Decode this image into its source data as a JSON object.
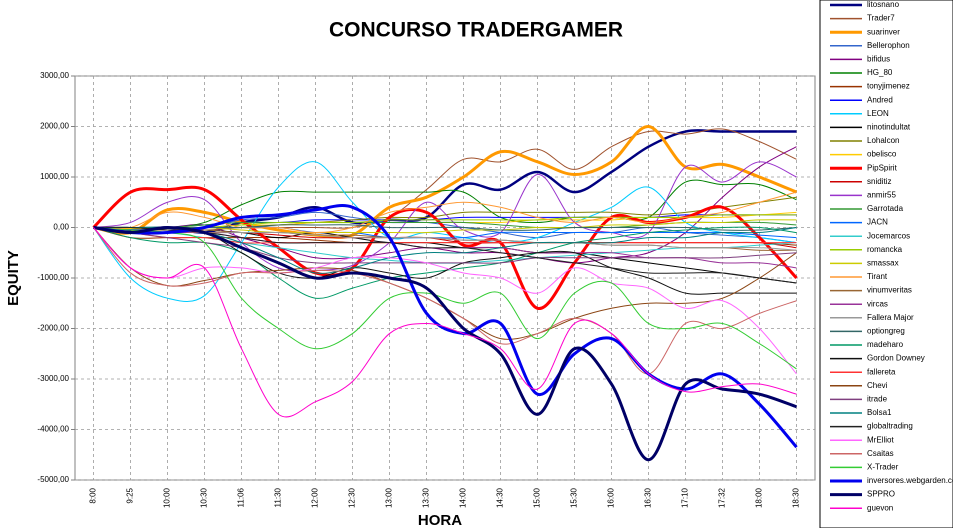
{
  "chart_data": {
    "type": "line",
    "title": "CONCURSO TRADERGAMER",
    "x_label": "HORA",
    "y_label": "EQUITY",
    "categories": [
      "8:00",
      "9:25",
      "10:00",
      "10:30",
      "11:06",
      "11:30",
      "12:00",
      "12:30",
      "13:00",
      "13:30",
      "14:00",
      "14:30",
      "15:00",
      "15:30",
      "16:00",
      "16:30",
      "17:10",
      "17:32",
      "18:00",
      "18:30"
    ],
    "ylim": [
      -5000,
      3000
    ],
    "yticks": [
      {
        "value": -5000,
        "label": "-5000,00"
      },
      {
        "value": -4000,
        "label": "-4000,00"
      },
      {
        "value": -3000,
        "label": "-3000,00"
      },
      {
        "value": -2000,
        "label": "-2000,00"
      },
      {
        "value": -1000,
        "label": "-1000,00"
      },
      {
        "value": 0,
        "label": "0,00"
      },
      {
        "value": 1000,
        "label": "1000,00"
      },
      {
        "value": 2000,
        "label": "2000,00"
      },
      {
        "value": 3000,
        "label": "3000,00"
      }
    ],
    "grid": true,
    "series": [
      {
        "name": "litosnano",
        "color": "#000080",
        "values": [
          0,
          -50,
          0,
          -100,
          100,
          200,
          400,
          100,
          150,
          200,
          850,
          750,
          1100,
          700,
          1100,
          1600,
          1900,
          1900,
          1900,
          1900
        ]
      },
      {
        "name": "Trader7",
        "color": "#a0522d",
        "values": [
          0,
          -100,
          0,
          -50,
          0,
          0,
          0,
          0,
          200,
          750,
          1350,
          1300,
          1550,
          1150,
          1600,
          1900,
          1850,
          1950,
          1700,
          1350
        ]
      },
      {
        "name": "suarinver",
        "color": "#ff9900",
        "values": [
          0,
          -100,
          350,
          300,
          100,
          -50,
          -150,
          -150,
          400,
          600,
          1000,
          1500,
          1300,
          1050,
          1300,
          2000,
          1200,
          1250,
          1000,
          700
        ]
      },
      {
        "name": "Bellerophon",
        "color": "#3366cc",
        "values": [
          0,
          -30,
          -50,
          0,
          150,
          200,
          300,
          200,
          100,
          100,
          0,
          -100,
          -200,
          -100,
          -100,
          0,
          -100,
          -150,
          -200,
          -300
        ]
      },
      {
        "name": "bifidus",
        "color": "#800080",
        "values": [
          0,
          0,
          0,
          50,
          -200,
          -400,
          -600,
          -600,
          -500,
          -400,
          -500,
          -500,
          -600,
          -700,
          -600,
          -500,
          -100,
          600,
          1200,
          1600
        ]
      },
      {
        "name": "HG_80",
        "color": "#008000",
        "values": [
          0,
          0,
          0,
          100,
          450,
          700,
          700,
          700,
          700,
          700,
          700,
          200,
          100,
          200,
          200,
          200,
          900,
          850,
          850,
          550
        ]
      },
      {
        "name": "tonyjimenez",
        "color": "#993300",
        "values": [
          0,
          -200,
          -200,
          -200,
          -200,
          -200,
          -250,
          -300,
          -300,
          -300,
          -300,
          -300,
          -300,
          -300,
          -300,
          -300,
          -300,
          -300,
          -300,
          -350
        ]
      },
      {
        "name": "Andred",
        "color": "#0000ff",
        "values": [
          0,
          0,
          0,
          50,
          100,
          100,
          150,
          150,
          150,
          150,
          200,
          200,
          200,
          200,
          200,
          200,
          250,
          250,
          250,
          250
        ]
      },
      {
        "name": "LEON",
        "color": "#00ccff",
        "values": [
          0,
          -1000,
          -1400,
          -1350,
          -300,
          800,
          1300,
          500,
          -200,
          -100,
          -200,
          -300,
          -200,
          100,
          400,
          800,
          100,
          -100,
          -200,
          -300
        ]
      },
      {
        "name": "ninotindultat",
        "color": "#000000",
        "values": [
          0,
          0,
          0,
          -50,
          -100,
          -200,
          -100,
          -200,
          -300,
          -300,
          -400,
          -400,
          -500,
          -500,
          -600,
          -700,
          -800,
          -900,
          -1000,
          -1100
        ]
      },
      {
        "name": "Lohalcon",
        "color": "#808000",
        "values": [
          0,
          0,
          0,
          0,
          0,
          50,
          100,
          150,
          200,
          200,
          300,
          300,
          300,
          300,
          300,
          250,
          300,
          400,
          500,
          600
        ]
      },
      {
        "name": "obelisco",
        "color": "#ffcc00",
        "values": [
          0,
          -20,
          0,
          0,
          50,
          50,
          100,
          100,
          100,
          100,
          100,
          100,
          150,
          150,
          150,
          200,
          200,
          200,
          250,
          300
        ]
      },
      {
        "name": "PipSpirit",
        "color": "#ff0000",
        "values": [
          0,
          700,
          750,
          750,
          150,
          -400,
          -900,
          -800,
          200,
          300,
          -350,
          -300,
          -1600,
          -700,
          200,
          100,
          200,
          400,
          -200,
          -1000
        ]
      },
      {
        "name": "sniditiz",
        "color": "#cc0000",
        "values": [
          0,
          -100,
          -100,
          -100,
          -100,
          -150,
          -200,
          -200,
          -200,
          -200,
          -300,
          -300,
          -300,
          -300,
          -300,
          -300,
          -300,
          -300,
          -300,
          -400
        ]
      },
      {
        "name": "anmir55",
        "color": "#9933cc",
        "values": [
          0,
          100,
          500,
          550,
          -300,
          -800,
          -850,
          -750,
          -300,
          500,
          -50,
          -100,
          1050,
          100,
          -100,
          -100,
          1200,
          900,
          1300,
          1000
        ]
      },
      {
        "name": "Garrotada",
        "color": "#339933",
        "values": [
          0,
          0,
          0,
          50,
          100,
          100,
          100,
          100,
          100,
          100,
          100,
          50,
          0,
          0,
          0,
          50,
          100,
          100,
          100,
          50
        ]
      },
      {
        "name": "JACN",
        "color": "#0066ff",
        "values": [
          0,
          0,
          0,
          0,
          0,
          0,
          -100,
          -100,
          -200,
          -200,
          -200,
          -100,
          -100,
          -100,
          -100,
          -100,
          -100,
          -100,
          -150,
          -200
        ]
      },
      {
        "name": "Jocemarcos",
        "color": "#33cccc",
        "values": [
          0,
          -50,
          -100,
          -200,
          -300,
          -400,
          -500,
          -600,
          -650,
          -700,
          -700,
          -650,
          -600,
          -550,
          -500,
          -450,
          -400,
          -400,
          -350,
          -300
        ]
      },
      {
        "name": "romancka",
        "color": "#99cc00",
        "values": [
          0,
          0,
          0,
          0,
          50,
          100,
          100,
          100,
          150,
          150,
          150,
          150,
          150,
          200,
          200,
          200,
          200,
          250,
          250,
          250
        ]
      },
      {
        "name": "smassax",
        "color": "#cccc00",
        "values": [
          0,
          0,
          0,
          0,
          -50,
          -100,
          -100,
          -100,
          -100,
          -100,
          -50,
          -50,
          0,
          0,
          50,
          50,
          100,
          100,
          150,
          150
        ]
      },
      {
        "name": "Tirant",
        "color": "#ff9933",
        "values": [
          0,
          0,
          300,
          200,
          0,
          0,
          -100,
          0,
          300,
          400,
          500,
          400,
          200,
          100,
          200,
          100,
          200,
          300,
          500,
          700
        ]
      },
      {
        "name": "vinumveritas",
        "color": "#996633",
        "values": [
          0,
          -50,
          -50,
          -50,
          -100,
          -100,
          -150,
          -150,
          -200,
          -200,
          -250,
          -250,
          -300,
          -300,
          -350,
          -350,
          -400,
          -400,
          -450,
          -450
        ]
      },
      {
        "name": "vircas",
        "color": "#993399",
        "values": [
          0,
          -50,
          -100,
          -100,
          -200,
          -300,
          -300,
          -300,
          -300,
          -400,
          -400,
          -400,
          -500,
          -500,
          -500,
          -600,
          -600,
          -700,
          -700,
          -800
        ]
      },
      {
        "name": "Fallera Major",
        "color": "#999999",
        "values": [
          0,
          0,
          -50,
          -100,
          -100,
          -100,
          -150,
          -200,
          -200,
          -200,
          -250,
          -250,
          -300,
          -300,
          -350,
          -350,
          -400,
          -400,
          -400,
          -450
        ]
      },
      {
        "name": "optiongreg",
        "color": "#336666",
        "values": [
          0,
          0,
          0,
          0,
          0,
          50,
          50,
          50,
          0,
          0,
          0,
          -50,
          -50,
          0,
          0,
          0,
          0,
          -50,
          -50,
          0
        ]
      },
      {
        "name": "madeharo",
        "color": "#009966",
        "values": [
          0,
          -200,
          -300,
          -300,
          -500,
          -1000,
          -1400,
          -1200,
          -1000,
          -900,
          -800,
          -700,
          -500,
          -300,
          -200,
          -100,
          -50,
          0,
          0,
          -100
        ]
      },
      {
        "name": "Gordon Downey",
        "color": "#111111",
        "values": [
          0,
          0,
          -50,
          -100,
          -500,
          -900,
          -1000,
          -800,
          -900,
          -1000,
          -700,
          -600,
          -500,
          -500,
          -800,
          -1000,
          -1300,
          -1300,
          -1300,
          -1300
        ]
      },
      {
        "name": "fallereta",
        "color": "#ff3333",
        "values": [
          0,
          -100,
          -200,
          -200,
          -300,
          -300,
          -300,
          -300,
          -300,
          -300,
          -300,
          -300,
          -300,
          -300,
          -300,
          -300,
          -300,
          -300,
          -300,
          -300
        ]
      },
      {
        "name": "Chevi",
        "color": "#8b4513",
        "values": [
          0,
          -800,
          -1150,
          -1050,
          -900,
          -850,
          -800,
          -850,
          -1100,
          -1400,
          -1800,
          -2200,
          -2100,
          -1800,
          -1600,
          -1500,
          -1500,
          -1400,
          -1000,
          -500
        ]
      },
      {
        "name": "itrade",
        "color": "#7f3f7f",
        "values": [
          0,
          -100,
          -200,
          -300,
          -400,
          -600,
          -700,
          -700,
          -700,
          -700,
          -700,
          -700,
          -600,
          -600,
          -600,
          -600,
          -600,
          -600,
          -550,
          -500
        ]
      },
      {
        "name": "Bolsa1",
        "color": "#008080",
        "values": [
          0,
          0,
          0,
          -100,
          -300,
          -600,
          -900,
          -800,
          -600,
          -500,
          -500,
          -400,
          -300,
          -300,
          -300,
          -200,
          -200,
          -100,
          -100,
          0
        ]
      },
      {
        "name": "globaltrading",
        "color": "#222222",
        "values": [
          0,
          0,
          -50,
          -100,
          -200,
          -300,
          -300,
          -300,
          -300,
          -400,
          -400,
          -500,
          -600,
          -700,
          -800,
          -900,
          -900,
          -900,
          -1000,
          -1100
        ]
      },
      {
        "name": "MrElliot",
        "color": "#ff66ff",
        "values": [
          0,
          -800,
          -1000,
          -800,
          -800,
          -900,
          -800,
          -600,
          -600,
          -700,
          -900,
          -1000,
          -1300,
          -800,
          -1100,
          -1200,
          -1600,
          -1450,
          -2000,
          -2900
        ]
      },
      {
        "name": "Csaitas",
        "color": "#cc6666",
        "values": [
          0,
          -900,
          -1150,
          -1100,
          -900,
          -900,
          -850,
          -900,
          -1100,
          -1400,
          -1800,
          -2300,
          -2100,
          -1800,
          -2100,
          -2900,
          -1900,
          -2000,
          -1700,
          -1450
        ]
      },
      {
        "name": "X-Trader",
        "color": "#33cc33",
        "values": [
          0,
          -50,
          -100,
          -300,
          -1400,
          -2000,
          -2400,
          -2100,
          -1400,
          -1300,
          -1500,
          -1300,
          -2200,
          -1300,
          -1100,
          -1900,
          -2000,
          -1900,
          -2300,
          -2800
        ]
      },
      {
        "name": "inversores.webgarden.com",
        "color": "#0000ee",
        "values": [
          0,
          -100,
          -100,
          0,
          200,
          250,
          350,
          400,
          -200,
          -1700,
          -2100,
          -1900,
          -3300,
          -2500,
          -2200,
          -2900,
          -3200,
          -2900,
          -3500,
          -4350
        ]
      },
      {
        "name": "SPPRO",
        "color": "#000066",
        "values": [
          0,
          -100,
          0,
          -100,
          -400,
          -700,
          -1000,
          -900,
          -1000,
          -1200,
          -2000,
          -2500,
          -3700,
          -2400,
          -3100,
          -4600,
          -3100,
          -3200,
          -3300,
          -3550
        ]
      },
      {
        "name": "guevon",
        "color": "#ff00cc",
        "values": [
          0,
          -800,
          -1000,
          -800,
          -2400,
          -3700,
          -3450,
          -3050,
          -2100,
          -1900,
          -2100,
          -2400,
          -3200,
          -1900,
          -2100,
          -2900,
          -3250,
          -3150,
          -3100,
          -3300
        ]
      }
    ]
  }
}
